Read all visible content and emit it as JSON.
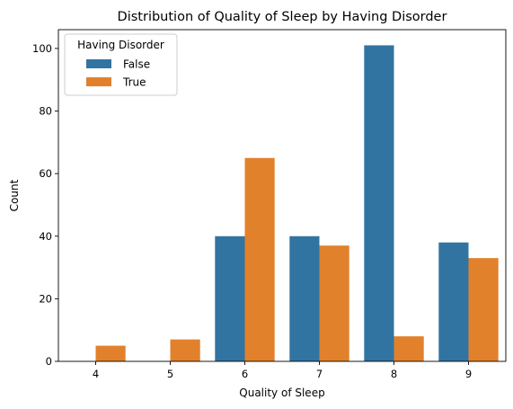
{
  "chart_data": {
    "type": "bar",
    "title": "Distribution of Quality of Sleep by Having Disorder",
    "xlabel": "Quality of Sleep",
    "ylabel": "Count",
    "categories": [
      "4",
      "5",
      "6",
      "7",
      "8",
      "9"
    ],
    "ylim": [
      0,
      106
    ],
    "yticks": [
      "0",
      "20",
      "40",
      "60",
      "80",
      "100"
    ],
    "legend": {
      "title": "Having Disorder",
      "placement": "top-left"
    },
    "series": [
      {
        "name": "False",
        "color": "#3274a1",
        "values": [
          0,
          0,
          40,
          40,
          101,
          38
        ]
      },
      {
        "name": "True",
        "color": "#e1812c",
        "values": [
          5,
          7,
          65,
          37,
          8,
          33
        ]
      }
    ],
    "grid": false
  }
}
